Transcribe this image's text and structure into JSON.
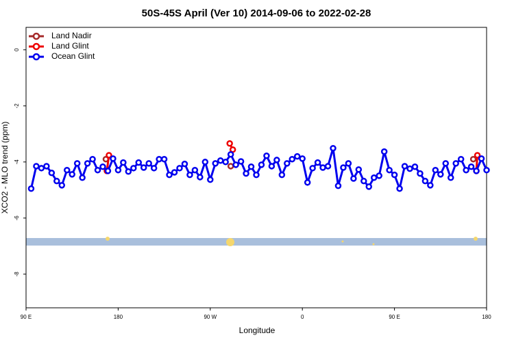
{
  "chart_data": {
    "type": "line",
    "title": "50S-45S April (Ver 10)   2014-09-06 to 2022-02-28",
    "xlabel": "Longitude",
    "ylabel": "XCO2 - MLO trend (ppm)",
    "xlim": [
      90,
      540
    ],
    "xticks": [
      {
        "value": 90,
        "label": "90 E"
      },
      180,
      {
        "value": 270,
        "label": "90 W"
      },
      {
        "value": 360,
        "label": "0"
      },
      {
        "value": 450,
        "label": "90 E"
      },
      {
        "value": 540,
        "label": "180"
      }
    ],
    "ylim": [
      -9.2,
      0.8
    ],
    "yticks": [
      0,
      -2,
      -4,
      -6,
      -8
    ],
    "legend": "upper left",
    "series": [
      {
        "name": "Land Nadir",
        "color": "#a52a2a",
        "x": [
          168,
          null,
          290,
          null,
          527
        ],
        "values": [
          -3.9,
          null,
          -4.15,
          null,
          -3.9
        ]
      },
      {
        "name": "Land Glint",
        "color": "#ee0000",
        "x": [
          169,
          171,
          null,
          289,
          292,
          null,
          530,
          531
        ],
        "values": [
          -4.32,
          -3.76,
          null,
          -3.34,
          -3.56,
          null,
          -4.32,
          -3.76
        ]
      },
      {
        "name": "Ocean Glint",
        "color": "#0000ee",
        "x": [
          95,
          100,
          105,
          110,
          115,
          120,
          125,
          130,
          135,
          140,
          145,
          150,
          155,
          160,
          165,
          170,
          175,
          180,
          185,
          190,
          195,
          200,
          205,
          210,
          215,
          220,
          225,
          230,
          235,
          240,
          245,
          250,
          255,
          260,
          265,
          270,
          275,
          280,
          285,
          290,
          295,
          300,
          305,
          310,
          315,
          320,
          325,
          330,
          335,
          340,
          345,
          350,
          355,
          360,
          365,
          370,
          375,
          380,
          385,
          390,
          395,
          400,
          405,
          410,
          415,
          420,
          425,
          430,
          435,
          440,
          445,
          450,
          455,
          460,
          465,
          470,
          475,
          480,
          485,
          490,
          495,
          500,
          505,
          510,
          515,
          520,
          525,
          530,
          535,
          540
        ],
        "values": [
          -4.95,
          -4.15,
          -4.22,
          -4.15,
          -4.39,
          -4.68,
          -4.83,
          -4.29,
          -4.44,
          -4.05,
          -4.56,
          -4.05,
          -3.9,
          -4.29,
          -4.17,
          -4.32,
          -3.88,
          -4.29,
          -4.02,
          -4.34,
          -4.22,
          -4.02,
          -4.2,
          -4.05,
          -4.22,
          -3.9,
          -3.9,
          -4.46,
          -4.37,
          -4.22,
          -4.07,
          -4.46,
          -4.29,
          -4.54,
          -4.0,
          -4.63,
          -4.05,
          -3.95,
          -4.0,
          -3.73,
          -4.1,
          -3.98,
          -4.41,
          -4.17,
          -4.46,
          -4.1,
          -3.78,
          -4.15,
          -3.93,
          -4.46,
          -4.05,
          -3.9,
          -3.8,
          -3.88,
          -4.73,
          -4.22,
          -4.02,
          -4.2,
          -4.15,
          -3.51,
          -4.85,
          -4.2,
          -4.05,
          -4.59,
          -4.27,
          -4.68,
          -4.88,
          -4.56,
          -4.49,
          -3.63,
          -4.29,
          -4.46,
          -4.95,
          -4.15,
          -4.24,
          -4.17,
          -4.41,
          -4.68,
          -4.83,
          -4.29,
          -4.44,
          -4.05,
          -4.56,
          -4.05,
          -3.9,
          -4.29,
          -4.17,
          -4.32,
          -3.88,
          -4.29
        ]
      }
    ]
  }
}
